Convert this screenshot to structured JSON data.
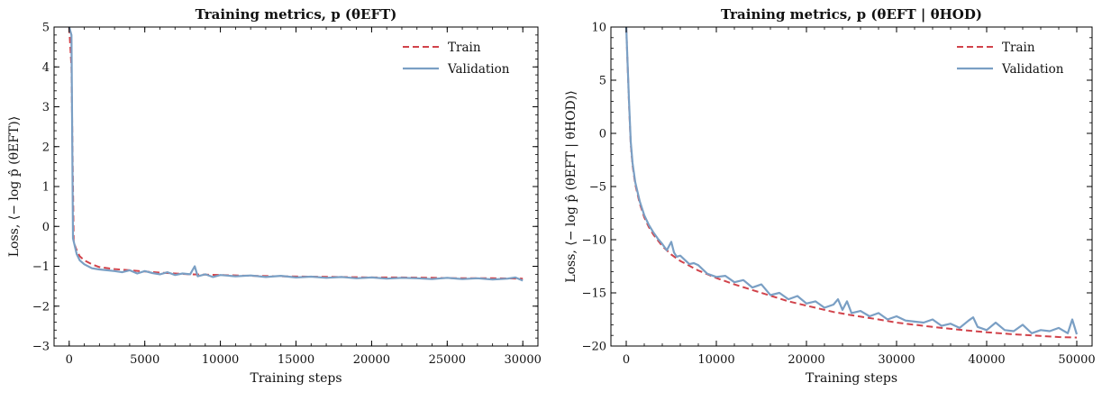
{
  "chart_data": [
    {
      "type": "line",
      "title": "Training metrics, p (θEFT)",
      "xlabel": "Training steps",
      "ylabel": "Loss, ⟨− log p̂ (θEFT)⟩",
      "xlim": [
        -1000,
        31000
      ],
      "ylim": [
        -3,
        5
      ],
      "xticks": [
        0,
        5000,
        10000,
        15000,
        20000,
        25000,
        30000
      ],
      "yticks": [
        -3,
        -2,
        -1,
        0,
        1,
        2,
        3,
        4,
        5
      ],
      "grid": false,
      "legend": "top-right",
      "series": [
        {
          "name": "Train",
          "color": "#d1434b",
          "dash": true,
          "x": [
            0,
            150,
            300,
            500,
            700,
            1000,
            1500,
            2000,
            3000,
            4000,
            5000,
            6000,
            7000,
            8000,
            9000,
            10000,
            12000,
            14000,
            16000,
            18000,
            20000,
            22000,
            24000,
            26000,
            28000,
            30000
          ],
          "y": [
            5,
            4,
            -0.4,
            -0.6,
            -0.75,
            -0.85,
            -0.95,
            -1.02,
            -1.07,
            -1.1,
            -1.13,
            -1.16,
            -1.18,
            -1.2,
            -1.21,
            -1.22,
            -1.24,
            -1.25,
            -1.26,
            -1.27,
            -1.28,
            -1.28,
            -1.29,
            -1.3,
            -1.3,
            -1.31
          ]
        },
        {
          "name": "Validation",
          "color": "#7a9fc4",
          "dash": false,
          "x": [
            0,
            150,
            250,
            500,
            700,
            1000,
            1500,
            2000,
            2500,
            3000,
            3500,
            4000,
            4500,
            5000,
            5500,
            6000,
            6500,
            7000,
            7500,
            8000,
            8300,
            8500,
            9000,
            9500,
            10000,
            11000,
            12000,
            13000,
            14000,
            15000,
            16000,
            17000,
            18000,
            19000,
            20000,
            21000,
            22000,
            23000,
            24000,
            25000,
            26000,
            27000,
            28000,
            29000,
            29500,
            30000
          ],
          "y": [
            5,
            4.8,
            -0.3,
            -0.7,
            -0.85,
            -0.95,
            -1.05,
            -1.08,
            -1.1,
            -1.12,
            -1.15,
            -1.1,
            -1.18,
            -1.12,
            -1.17,
            -1.2,
            -1.15,
            -1.22,
            -1.18,
            -1.2,
            -1.0,
            -1.25,
            -1.2,
            -1.27,
            -1.22,
            -1.25,
            -1.23,
            -1.27,
            -1.24,
            -1.28,
            -1.26,
            -1.29,
            -1.27,
            -1.3,
            -1.28,
            -1.31,
            -1.29,
            -1.3,
            -1.32,
            -1.29,
            -1.32,
            -1.3,
            -1.33,
            -1.31,
            -1.28,
            -1.36
          ]
        }
      ]
    },
    {
      "type": "line",
      "title": "Training metrics, p (θEFT | θHOD)",
      "xlabel": "Training steps",
      "ylabel": "Loss, ⟨− log p̂ (θEFT | θHOD)⟩",
      "xlim": [
        -1700,
        51700
      ],
      "ylim": [
        -20,
        10
      ],
      "xticks": [
        0,
        10000,
        20000,
        30000,
        40000,
        50000
      ],
      "yticks": [
        -20,
        -15,
        -10,
        -5,
        0,
        5,
        10
      ],
      "grid": false,
      "legend": "top-right",
      "series": [
        {
          "name": "Train",
          "color": "#d1434b",
          "dash": true,
          "x": [
            0,
            300,
            500,
            700,
            1000,
            1500,
            2000,
            2500,
            3000,
            4000,
            5000,
            6000,
            8000,
            10000,
            12000,
            15000,
            18000,
            20000,
            23000,
            25000,
            28000,
            30000,
            33000,
            35000,
            38000,
            40000,
            43000,
            45000,
            48000,
            50000
          ],
          "y": [
            10,
            3,
            -1,
            -3,
            -4.8,
            -6.6,
            -7.9,
            -8.8,
            -9.5,
            -10.6,
            -11.4,
            -12.0,
            -12.9,
            -13.6,
            -14.2,
            -15.0,
            -15.8,
            -16.2,
            -16.8,
            -17.1,
            -17.5,
            -17.8,
            -18.1,
            -18.3,
            -18.55,
            -18.7,
            -18.9,
            -19.0,
            -19.15,
            -19.2
          ]
        },
        {
          "name": "Validation",
          "color": "#7a9fc4",
          "dash": false,
          "x": [
            0,
            300,
            500,
            700,
            1000,
            1500,
            2000,
            2500,
            3000,
            3500,
            4000,
            4500,
            5000,
            5300,
            5600,
            6000,
            7000,
            7500,
            8000,
            9000,
            10000,
            11000,
            12000,
            13000,
            14000,
            15000,
            16000,
            17000,
            18000,
            19000,
            20000,
            21000,
            22000,
            23000,
            23500,
            24000,
            24500,
            25000,
            26000,
            27000,
            28000,
            29000,
            30000,
            31000,
            32000,
            33000,
            34000,
            35000,
            36000,
            37000,
            38000,
            38500,
            39000,
            40000,
            41000,
            42000,
            43000,
            44000,
            45000,
            46000,
            47000,
            48000,
            49000,
            49500,
            50000
          ],
          "y": [
            10,
            3.2,
            -0.8,
            -2.8,
            -4.6,
            -6.4,
            -7.7,
            -8.6,
            -9.3,
            -9.9,
            -10.4,
            -11.0,
            -10.2,
            -11.2,
            -11.6,
            -11.5,
            -12.3,
            -12.2,
            -12.4,
            -13.2,
            -13.5,
            -13.4,
            -14.0,
            -13.8,
            -14.5,
            -14.2,
            -15.2,
            -15.0,
            -15.6,
            -15.3,
            -16.0,
            -15.8,
            -16.4,
            -16.1,
            -15.6,
            -16.6,
            -15.8,
            -16.9,
            -16.7,
            -17.2,
            -16.9,
            -17.5,
            -17.2,
            -17.6,
            -17.7,
            -17.8,
            -17.5,
            -18.1,
            -17.9,
            -18.3,
            -17.6,
            -17.3,
            -18.2,
            -18.5,
            -17.8,
            -18.5,
            -18.6,
            -18.0,
            -18.8,
            -18.5,
            -18.6,
            -18.3,
            -18.8,
            -17.5,
            -18.9
          ]
        }
      ]
    }
  ]
}
